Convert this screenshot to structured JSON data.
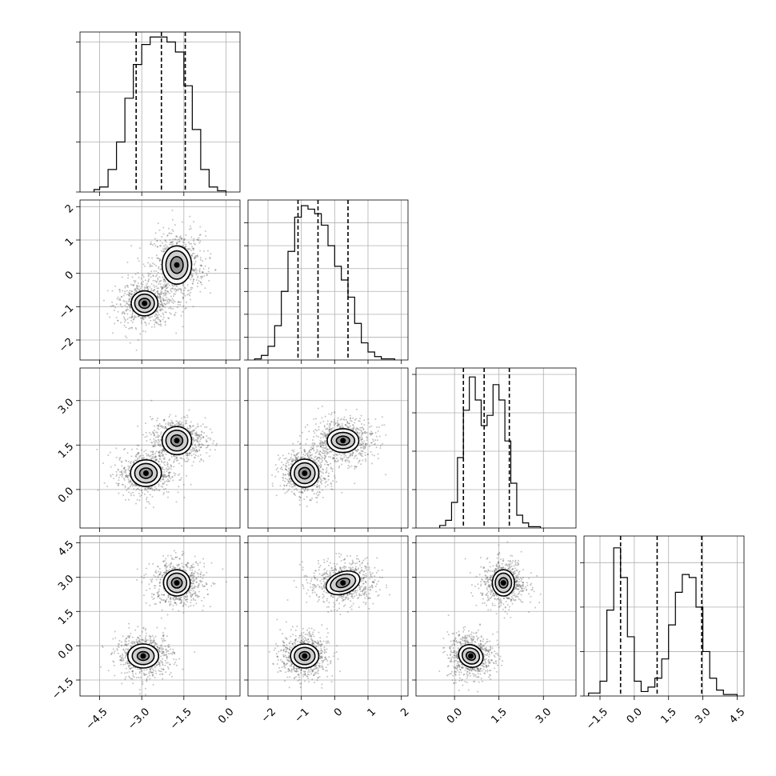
{
  "chart_data": {
    "type": "corner",
    "parameters": [
      "p0",
      "p1",
      "p2",
      "p3"
    ],
    "ranges": [
      [
        -5.2,
        0.5
      ],
      [
        -2.6,
        2.2
      ],
      [
        -1.3,
        4.1
      ],
      [
        -2.2,
        4.8
      ]
    ],
    "axis_ticks": [
      {
        "values": [
          -4.5,
          -3.0,
          -1.5,
          0.0
        ],
        "labels": [
          "−4.5",
          "−3.0",
          "−1.5",
          "0.0"
        ]
      },
      {
        "values": [
          -2,
          -1,
          0,
          1,
          2
        ],
        "labels": [
          "−2",
          "−1",
          "0",
          "1",
          "2"
        ]
      },
      {
        "values": [
          0.0,
          1.5,
          3.0
        ],
        "labels": [
          "0.0",
          "1.5",
          "3.0"
        ]
      },
      {
        "values": [
          -1.5,
          0.0,
          1.5,
          3.0,
          4.5
        ],
        "labels": [
          "−1.5",
          "0.0",
          "1.5",
          "3.0",
          "4.5"
        ]
      }
    ],
    "quantiles": [
      [
        -3.2,
        -2.3,
        -1.45
      ],
      [
        -1.1,
        -0.5,
        0.4
      ],
      [
        0.3,
        1.0,
        1.85
      ],
      [
        -0.6,
        1.0,
        2.95
      ]
    ],
    "histograms": [
      {
        "edges": [
          -4.7,
          -4.5,
          -4.2,
          -3.9,
          -3.6,
          -3.3,
          -3.0,
          -2.7,
          -2.4,
          -2.1,
          -1.8,
          -1.5,
          -1.2,
          -0.9,
          -0.6,
          -0.3,
          0.0
        ],
        "counts": [
          2,
          4,
          18,
          40,
          75,
          102,
          118,
          124,
          124,
          120,
          112,
          85,
          50,
          18,
          4,
          1
        ]
      },
      {
        "edges": [
          -2.4,
          -2.2,
          -2.0,
          -1.8,
          -1.6,
          -1.4,
          -1.2,
          -1.0,
          -0.8,
          -0.6,
          -0.4,
          -0.2,
          0.0,
          0.2,
          0.4,
          0.6,
          0.8,
          1.0,
          1.2,
          1.4,
          1.6,
          1.8
        ],
        "counts": [
          1,
          4,
          12,
          30,
          60,
          95,
          125,
          135,
          132,
          128,
          118,
          100,
          82,
          70,
          55,
          32,
          15,
          7,
          3,
          1,
          1
        ]
      },
      {
        "edges": [
          -0.5,
          -0.3,
          -0.1,
          0.1,
          0.3,
          0.5,
          0.7,
          0.9,
          1.1,
          1.3,
          1.5,
          1.7,
          1.9,
          2.1,
          2.3,
          2.5,
          2.7,
          2.9
        ],
        "counts": [
          2,
          6,
          20,
          55,
          92,
          118,
          100,
          80,
          88,
          112,
          100,
          68,
          35,
          10,
          4,
          1,
          1
        ]
      },
      {
        "edges": [
          -2.0,
          -1.5,
          -1.2,
          -0.9,
          -0.6,
          -0.3,
          0.0,
          0.3,
          0.6,
          0.9,
          1.2,
          1.5,
          1.8,
          2.1,
          2.4,
          2.7,
          3.0,
          3.3,
          3.6,
          3.9,
          4.2,
          4.5
        ],
        "counts": [
          2,
          10,
          58,
          100,
          80,
          40,
          10,
          3,
          6,
          12,
          25,
          48,
          70,
          82,
          80,
          60,
          30,
          12,
          4,
          1,
          1
        ]
      }
    ],
    "hist_ticks": [
      [
        0,
        40,
        80,
        120
      ],
      [
        0,
        20,
        40,
        60,
        80,
        100,
        120
      ],
      [
        0,
        30,
        60,
        90,
        120
      ],
      [
        0,
        30,
        60,
        90
      ]
    ],
    "hist_max": [
      128,
      140,
      125,
      108
    ],
    "modes": [
      [
        {
          "mu": [
            -2.9,
            -0.9,
            0.55,
            -0.45
          ],
          "sd": [
            0.5,
            0.35,
            0.38,
            0.5
          ]
        },
        {
          "mu": [
            -1.7,
            0.25,
            1.65,
            2.75
          ],
          "sd": [
            0.48,
            0.5,
            0.38,
            0.5
          ]
        }
      ]
    ],
    "contour_pairs": [
      {
        "row": 1,
        "col": 0,
        "blobs": [
          {
            "cx": -2.9,
            "cy": -0.9,
            "rx": [
              0.95,
              0.7,
              0.4
            ],
            "ry": [
              0.75,
              0.55,
              0.3
            ],
            "rot": 0
          },
          {
            "cx": -1.75,
            "cy": 0.25,
            "rx": [
              1.05,
              0.78,
              0.45
            ],
            "ry": [
              1.15,
              0.85,
              0.5
            ],
            "rot": 0
          }
        ]
      },
      {
        "row": 2,
        "col": 0,
        "blobs": [
          {
            "cx": -2.85,
            "cy": 0.55,
            "rx": [
              1.1,
              0.8,
              0.45
            ],
            "ry": [
              0.9,
              0.65,
              0.35
            ],
            "rot": 0
          },
          {
            "cx": -1.75,
            "cy": 1.65,
            "rx": [
              1.05,
              0.78,
              0.42
            ],
            "ry": [
              0.95,
              0.7,
              0.38
            ],
            "rot": 0
          }
        ]
      },
      {
        "row": 2,
        "col": 1,
        "blobs": [
          {
            "cx": -0.9,
            "cy": 0.55,
            "rx": [
              0.85,
              0.62,
              0.35
            ],
            "ry": [
              0.95,
              0.7,
              0.38
            ],
            "rot": 0
          },
          {
            "cx": 0.25,
            "cy": 1.65,
            "rx": [
              0.95,
              0.7,
              0.4
            ],
            "ry": [
              0.8,
              0.55,
              0.3
            ],
            "rot": 0
          }
        ]
      },
      {
        "row": 3,
        "col": 0,
        "blobs": [
          {
            "cx": -2.95,
            "cy": -0.45,
            "rx": [
              1.1,
              0.78,
              0.42
            ],
            "ry": [
              1.05,
              0.75,
              0.38
            ],
            "rot": 0
          },
          {
            "cx": -1.75,
            "cy": 2.75,
            "rx": [
              0.95,
              0.7,
              0.38
            ],
            "ry": [
              1.15,
              0.85,
              0.45
            ],
            "rot": 0
          }
        ]
      },
      {
        "row": 3,
        "col": 1,
        "blobs": [
          {
            "cx": -0.9,
            "cy": -0.45,
            "rx": [
              0.85,
              0.62,
              0.32
            ],
            "ry": [
              1.05,
              0.75,
              0.38
            ],
            "rot": 0
          },
          {
            "cx": 0.25,
            "cy": 2.75,
            "rx": [
              1.05,
              0.78,
              0.42
            ],
            "ry": [
              0.95,
              0.7,
              0.38
            ],
            "rot": -20
          }
        ]
      },
      {
        "row": 3,
        "col": 2,
        "blobs": [
          {
            "cx": 0.55,
            "cy": -0.45,
            "rx": [
              0.85,
              0.6,
              0.32
            ],
            "ry": [
              0.95,
              0.68,
              0.35
            ],
            "rot": 30
          },
          {
            "cx": 1.65,
            "cy": 2.75,
            "rx": [
              0.75,
              0.55,
              0.3
            ],
            "ry": [
              1.15,
              0.85,
              0.45
            ],
            "rot": 0
          }
        ]
      }
    ],
    "colors": {
      "points": "#555555",
      "contour": "#000000",
      "fill": "#7a7a7a",
      "grid": "#b0b0b0"
    }
  }
}
